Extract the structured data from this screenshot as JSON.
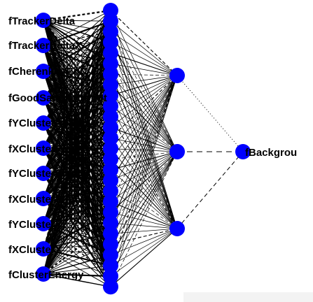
{
  "network": {
    "input_labels": [
      "fTrackerDelta_Y",
      "fTrackerDelta_X",
      "fChere__Hi_1_EoC",
      "fGood___Sample_count",
      "fYC|uster__PhiW",
      "fXC|uster__PhiW",
      "fYC|uster_Sigma",
      "fXC|uster_Sigma",
      "fYC|uster_Y",
      "fXC|uster_X",
      "fClusterEnergy"
    ],
    "visible_input_labels": [
      "fTrackerDelta",
      "fTrackerDeltaX",
      "fCherenkovEoC",
      "fGoodSampleCount",
      "fYClusterPhiW",
      "fXClusterPhiW",
      "fYClusterSigma",
      "fXClusterSigma",
      "fYClusterY",
      "fXClusterX",
      "fClusterEnergy"
    ],
    "output_label": "fBackgrou",
    "layers": {
      "input_count": 11,
      "hidden1_count": 27,
      "hidden2_count": 3,
      "output_count": 1
    },
    "colors": {
      "node": "#0000ff",
      "edge": "#000000",
      "label": "#000000"
    }
  }
}
